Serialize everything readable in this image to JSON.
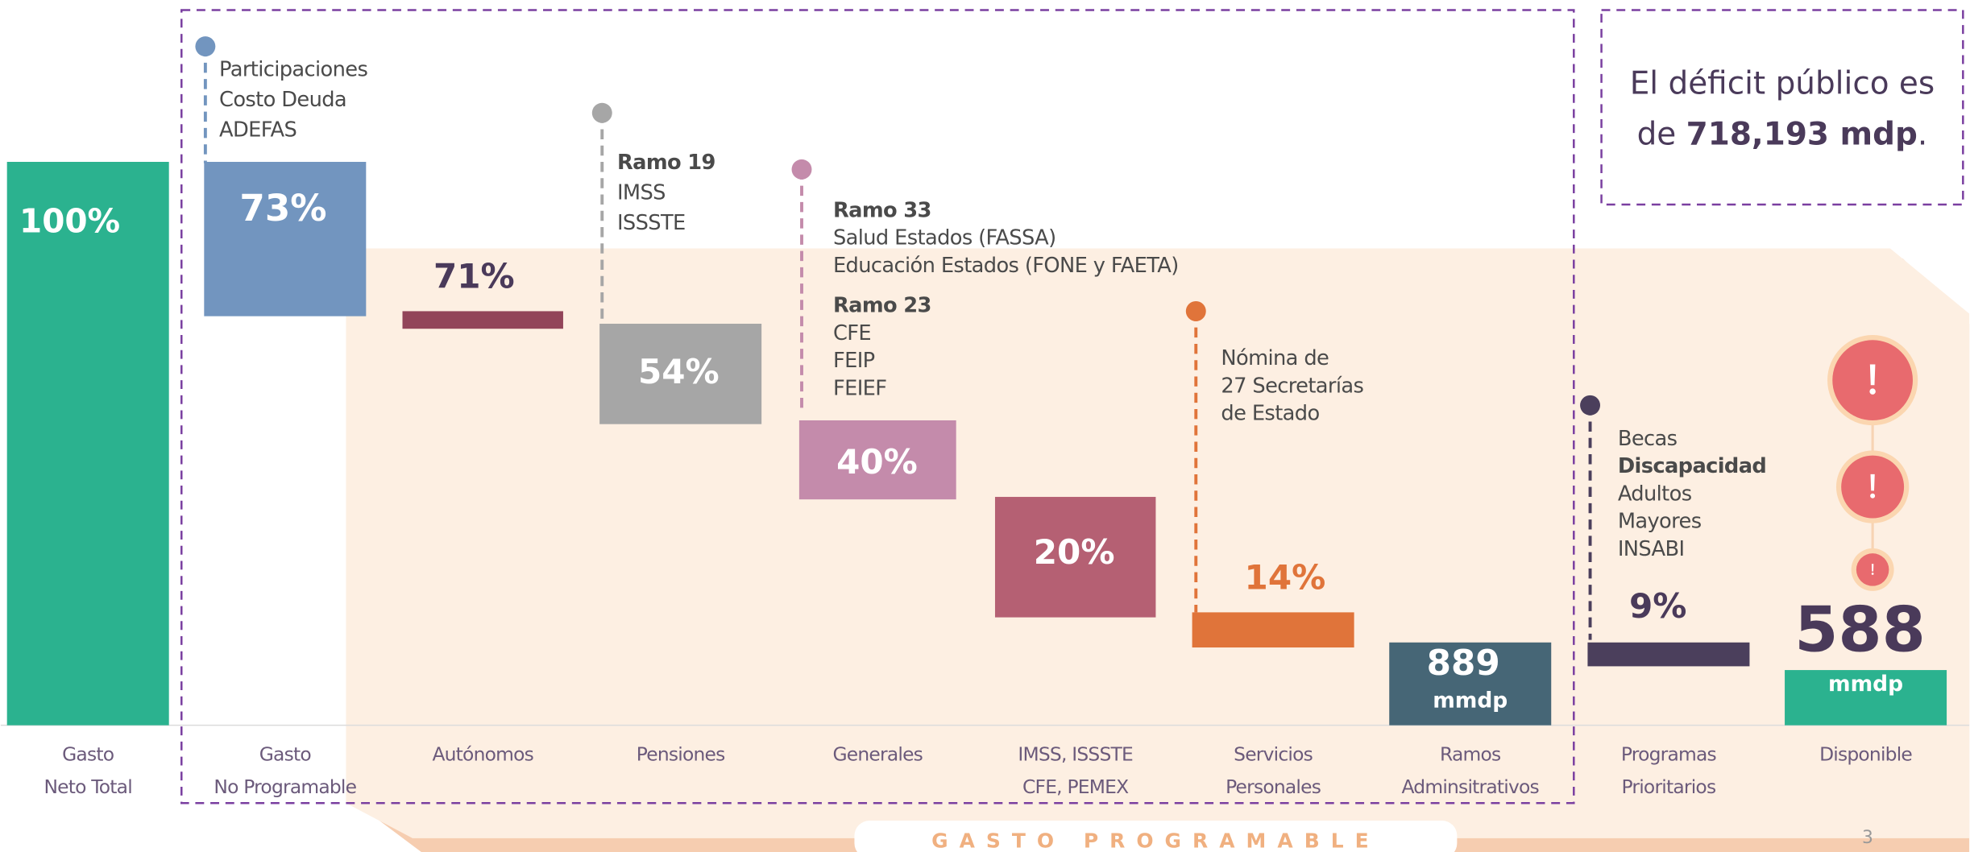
{
  "deficit": {
    "line1": "El déficit público es",
    "prefix": "de ",
    "amount": "718,193 mdp",
    "suffix": "."
  },
  "steps": [
    {
      "label": [
        "Gasto",
        "Neto Total"
      ],
      "value": "100%",
      "color": "#2bb28f"
    },
    {
      "label": [
        "Gasto",
        "No Programable"
      ],
      "value": "73%",
      "color": "#7295bf",
      "notes": [
        {
          "lines": [
            {
              "text": "Participaciones"
            },
            {
              "text": "Costo Deuda"
            },
            {
              "text": "ADEFAS"
            }
          ]
        }
      ]
    },
    {
      "label": [
        "Autónomos"
      ],
      "value": "71%",
      "color": "#924459"
    },
    {
      "label": [
        "Pensiones"
      ],
      "value": "54%",
      "color": "#a6a6a6",
      "notes": [
        {
          "lines": [
            {
              "text": "Ramo 19",
              "bold": true
            },
            {
              "text": "IMSS"
            },
            {
              "text": "ISSSTE"
            }
          ]
        }
      ]
    },
    {
      "label": [
        "Generales"
      ],
      "value": "40%",
      "color": "#c48bab",
      "notes": [
        {
          "lines": [
            {
              "text": "Ramo 33",
              "bold": true
            },
            {
              "text": "Salud Estados (FASSA)"
            },
            {
              "text": "Educación Estados (FONE y FAETA)"
            }
          ]
        },
        {
          "lines": [
            {
              "text": "Ramo 23",
              "bold": true
            },
            {
              "text": "CFE"
            },
            {
              "text": "FEIP"
            },
            {
              "text": "FEIEF"
            }
          ]
        }
      ]
    },
    {
      "label": [
        "IMSS, ISSSTE",
        "CFE, PEMEX"
      ],
      "value": "20%",
      "color": "#b56073"
    },
    {
      "label": [
        "Servicios",
        "Personales"
      ],
      "value": "14%",
      "color": "#e0743a",
      "notes": [
        {
          "lines": [
            {
              "text": "Nómina de"
            },
            {
              "text": "27 Secretarías"
            },
            {
              "text": "de Estado"
            }
          ]
        }
      ]
    },
    {
      "label": [
        "Ramos",
        "Adminsitrativos"
      ],
      "value": "889",
      "unit": "mmdp",
      "color": "#466676"
    },
    {
      "label": [
        "Programas",
        "Prioritarios"
      ],
      "value": "9%",
      "color": "#4b3f5c",
      "notes": [
        {
          "lines": [
            {
              "text": "Becas"
            },
            {
              "text": "Discapacidad",
              "bold": true
            },
            {
              "text": "Adultos"
            },
            {
              "text": "Mayores"
            },
            {
              "text": "INSABI"
            }
          ]
        }
      ]
    },
    {
      "label": [
        "Disponible"
      ],
      "value": "588",
      "unit": "mmdp",
      "color": "#2bb28f"
    }
  ],
  "footer": "GASTO PROGRAMABLE",
  "page": "3"
}
